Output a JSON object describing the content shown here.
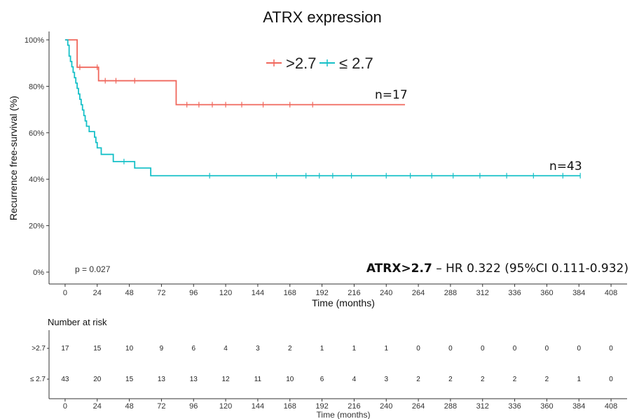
{
  "chart_data": {
    "type": "line",
    "title": "ATRX expression",
    "xlabel": "Time (months)",
    "ylabel": "Recurrence free-survival (%)",
    "xlim": [
      -12,
      420
    ],
    "ylim": [
      0,
      100
    ],
    "x_ticks": [
      0,
      24,
      48,
      72,
      96,
      120,
      144,
      168,
      192,
      216,
      240,
      264,
      288,
      312,
      336,
      360,
      384,
      408
    ],
    "y_ticks": [
      0,
      20,
      40,
      60,
      80,
      100
    ],
    "y_tick_labels": [
      "0%",
      "20%",
      "40%",
      "60%",
      "80%",
      "100%"
    ],
    "legend": {
      "placement": "top",
      "entries": [
        ">2.7",
        "≤ 2.7"
      ]
    },
    "series": [
      {
        "name": ">2.7",
        "color": "#f0675c",
        "end_x": 254,
        "steps": [
          [
            0,
            100
          ],
          [
            9,
            88.2
          ],
          [
            25,
            82.4
          ],
          [
            83,
            72.1
          ]
        ],
        "censor_x": [
          11,
          24,
          30,
          38,
          52,
          91,
          100,
          110,
          120,
          132,
          148,
          168,
          185
        ]
      },
      {
        "name": "≤ 2.7",
        "color": "#16c0c8",
        "end_x": 385,
        "steps": [
          [
            0,
            100
          ],
          [
            2,
            97.7
          ],
          [
            3,
            93
          ],
          [
            4,
            90.7
          ],
          [
            5,
            88.4
          ],
          [
            6,
            86
          ],
          [
            7,
            83.7
          ],
          [
            8,
            81.4
          ],
          [
            9,
            79.1
          ],
          [
            10,
            76.7
          ],
          [
            11,
            74.4
          ],
          [
            12,
            72.1
          ],
          [
            13,
            69.8
          ],
          [
            14,
            67.4
          ],
          [
            15,
            65.1
          ],
          [
            16,
            62.8
          ],
          [
            18,
            60.5
          ],
          [
            22,
            58.1
          ],
          [
            23,
            55.8
          ],
          [
            24,
            53.5
          ],
          [
            27,
            50.7
          ],
          [
            36,
            47.6
          ],
          [
            52,
            44.8
          ],
          [
            64,
            41.5
          ]
        ],
        "censor_x": [
          44,
          108,
          158,
          180,
          190,
          200,
          214,
          240,
          258,
          274,
          290,
          310,
          330,
          350,
          372,
          385
        ]
      }
    ],
    "annotations": {
      "n_upper": "n=17",
      "n_lower": "n=43",
      "p_value": "p = 0.027",
      "hr_bold": "ATRX>2.7",
      "hr_rest": " – HR 0.322 (95%CI 0.111-0.932)"
    },
    "risk_table": {
      "title": "Number at risk",
      "xlabel": "Time (months)",
      "rows": [
        {
          "label": ">2.7",
          "color": "#f0675c",
          "values": [
            17,
            15,
            10,
            9,
            6,
            4,
            3,
            2,
            1,
            1,
            1,
            0,
            0,
            0,
            0,
            0,
            0,
            0
          ]
        },
        {
          "label": "≤ 2.7",
          "color": "#16c0c8",
          "values": [
            43,
            20,
            15,
            13,
            13,
            12,
            11,
            10,
            6,
            4,
            3,
            2,
            2,
            2,
            2,
            2,
            1,
            0
          ]
        }
      ]
    }
  }
}
